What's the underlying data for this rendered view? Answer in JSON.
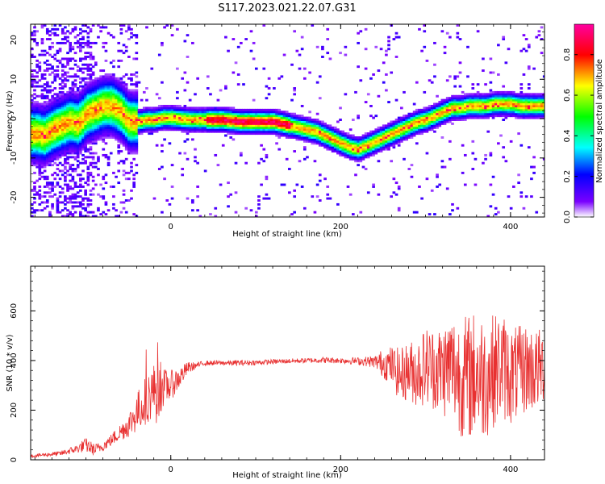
{
  "title": "S117.2023.021.22.07.G31",
  "chart_data": [
    {
      "type": "heatmap",
      "panel": "top",
      "xlabel": "Height of straight line (km)",
      "ylabel": "Frequency (Hz)",
      "xlim": [
        -165,
        440
      ],
      "ylim": [
        -25,
        24
      ],
      "xticks": [
        0,
        200,
        400
      ],
      "yticks": [
        -20,
        -10,
        0,
        10,
        20
      ],
      "colorbar": {
        "label": "Normalized spectral amplitude",
        "range": [
          0.0,
          0.95
        ],
        "ticks": [
          "0.0",
          "0.2",
          "0.4",
          "0.6",
          "0.8"
        ],
        "colormap": "rainbow"
      },
      "ridge": {
        "x": [
          -160,
          -150,
          -140,
          -130,
          -120,
          -110,
          -100,
          -90,
          -80,
          -70,
          -60,
          -50,
          -40,
          -30,
          -20,
          -10,
          0,
          20,
          40,
          60,
          80,
          100,
          120,
          130,
          140,
          150,
          160,
          170,
          180,
          190,
          200,
          210,
          220,
          230,
          240,
          250,
          260,
          270,
          280,
          290,
          300,
          310,
          320,
          330,
          340,
          350,
          360,
          370,
          380,
          390,
          400,
          410,
          420,
          430,
          440
        ],
        "y": [
          -4,
          -4.5,
          -3,
          -2,
          -1,
          -1.5,
          1,
          2,
          3,
          3,
          1.5,
          -1,
          -1,
          -0.5,
          -0.5,
          0,
          0,
          -0.5,
          -0.5,
          -0.5,
          -1,
          -1,
          -1,
          -1.5,
          -2,
          -2.5,
          -3,
          -3.5,
          -4.5,
          -5.5,
          -6.5,
          -7.5,
          -8,
          -7,
          -6,
          -5,
          -4,
          -3,
          -2,
          -1,
          -0.5,
          0.5,
          1.5,
          2.5,
          2.5,
          3,
          3,
          3,
          3.5,
          3.5,
          3.5,
          3,
          3,
          3,
          3
        ]
      }
    },
    {
      "type": "line",
      "panel": "bottom",
      "xlabel": "Height of straight line (km)",
      "ylabel": "SNR (10 * v/v)",
      "xlim": [
        -165,
        440
      ],
      "ylim": [
        0,
        780
      ],
      "xticks": [
        0,
        200,
        400
      ],
      "yticks": [
        0,
        200,
        400,
        600
      ],
      "color": "#e83030",
      "x": [
        -165,
        -150,
        -130,
        -110,
        -100,
        -90,
        -80,
        -70,
        -60,
        -50,
        -40,
        -30,
        -20,
        -15,
        -10,
        0,
        10,
        20,
        30,
        40,
        60,
        80,
        100,
        120,
        140,
        160,
        180,
        200,
        220,
        240,
        250,
        260,
        270,
        280,
        290,
        300,
        310,
        320,
        330,
        340,
        350,
        360,
        370,
        380,
        390,
        400,
        410,
        420,
        430,
        440
      ],
      "y": [
        15,
        20,
        25,
        45,
        60,
        40,
        55,
        80,
        110,
        140,
        190,
        240,
        280,
        310,
        290,
        300,
        330,
        370,
        380,
        390,
        390,
        390,
        392,
        395,
        398,
        400,
        402,
        400,
        398,
        395,
        390,
        380,
        340,
        360,
        350,
        380,
        370,
        360,
        380,
        340,
        330,
        350,
        330,
        360,
        380,
        340,
        350,
        370,
        360,
        380
      ],
      "amp": [
        6,
        8,
        10,
        18,
        30,
        25,
        20,
        25,
        35,
        50,
        80,
        100,
        110,
        180,
        80,
        60,
        45,
        25,
        12,
        10,
        10,
        12,
        10,
        10,
        10,
        10,
        12,
        12,
        15,
        25,
        60,
        80,
        110,
        120,
        140,
        160,
        170,
        190,
        220,
        240,
        260,
        260,
        250,
        230,
        220,
        200,
        190,
        180,
        170,
        150
      ]
    }
  ]
}
